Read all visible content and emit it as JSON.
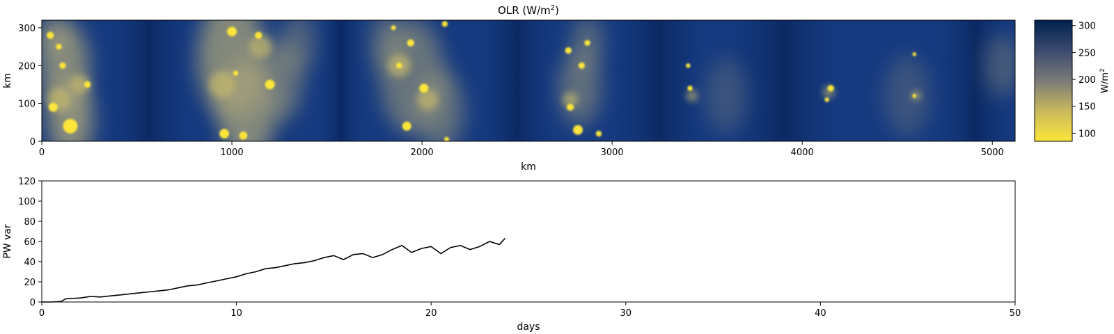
{
  "chart_data": [
    {
      "type": "heatmap",
      "title": "OLR (W/m",
      "title_sup": "2",
      "title_end": ")",
      "xlabel": "km",
      "ylabel": "km",
      "xlim": [
        0,
        5120
      ],
      "ylim": [
        0,
        320
      ],
      "xticks": [
        0,
        1000,
        2000,
        3000,
        4000,
        5000
      ],
      "yticks": [
        0,
        100,
        200,
        300
      ],
      "colormap": "cividis_r",
      "colors": {
        "low": "#fde63a",
        "mid": "#7b7b78",
        "high": "#00224e"
      },
      "description_of_field": "bands of cold cloud (low OLR) near x = 0-350, 800-1450, 1700-2300, 2650-3000 km; clear sky (high OLR) elsewhere",
      "colorbar": {
        "label": "W/m",
        "label_sup": "2",
        "range": [
          85,
          310
        ],
        "ticks": [
          100,
          150,
          200,
          250,
          300
        ]
      }
    },
    {
      "type": "line",
      "xlabel": "days",
      "ylabel": "PW var",
      "xlim": [
        0,
        50
      ],
      "ylim": [
        0,
        120
      ],
      "xticks": [
        0,
        10,
        20,
        30,
        40,
        50
      ],
      "yticks": [
        0,
        20,
        40,
        60,
        80,
        100,
        120
      ],
      "color": "#000000",
      "series": [
        {
          "x": [
            0,
            0.5,
            1.0,
            1.2,
            1.5,
            2.0,
            2.5,
            3.0,
            3.5,
            4.0,
            4.5,
            5.0,
            5.5,
            6.0,
            6.5,
            7.0,
            7.5,
            8.0,
            8.5,
            9.0,
            9.5,
            10.0,
            10.5,
            11.0,
            11.5,
            12.0,
            12.5,
            13.0,
            13.5,
            14.0,
            14.5,
            15.0,
            15.5,
            16.0,
            16.5,
            17.0,
            17.5,
            18.0,
            18.5,
            19.0,
            19.5,
            20.0,
            20.5,
            21.0,
            21.5,
            22.0,
            22.5,
            23.0,
            23.5,
            23.8
          ],
          "y": [
            0,
            0,
            0.5,
            3,
            3.5,
            4,
            5.5,
            5,
            6,
            7,
            8,
            9,
            10,
            11,
            12,
            14,
            16,
            17,
            19,
            21,
            23,
            25,
            28,
            30,
            33,
            34,
            36,
            38,
            39,
            41,
            44,
            46,
            42,
            47,
            48,
            44,
            47,
            52,
            56,
            49,
            53,
            55,
            48,
            54,
            56,
            52,
            55,
            60,
            57,
            63
          ]
        }
      ]
    }
  ]
}
